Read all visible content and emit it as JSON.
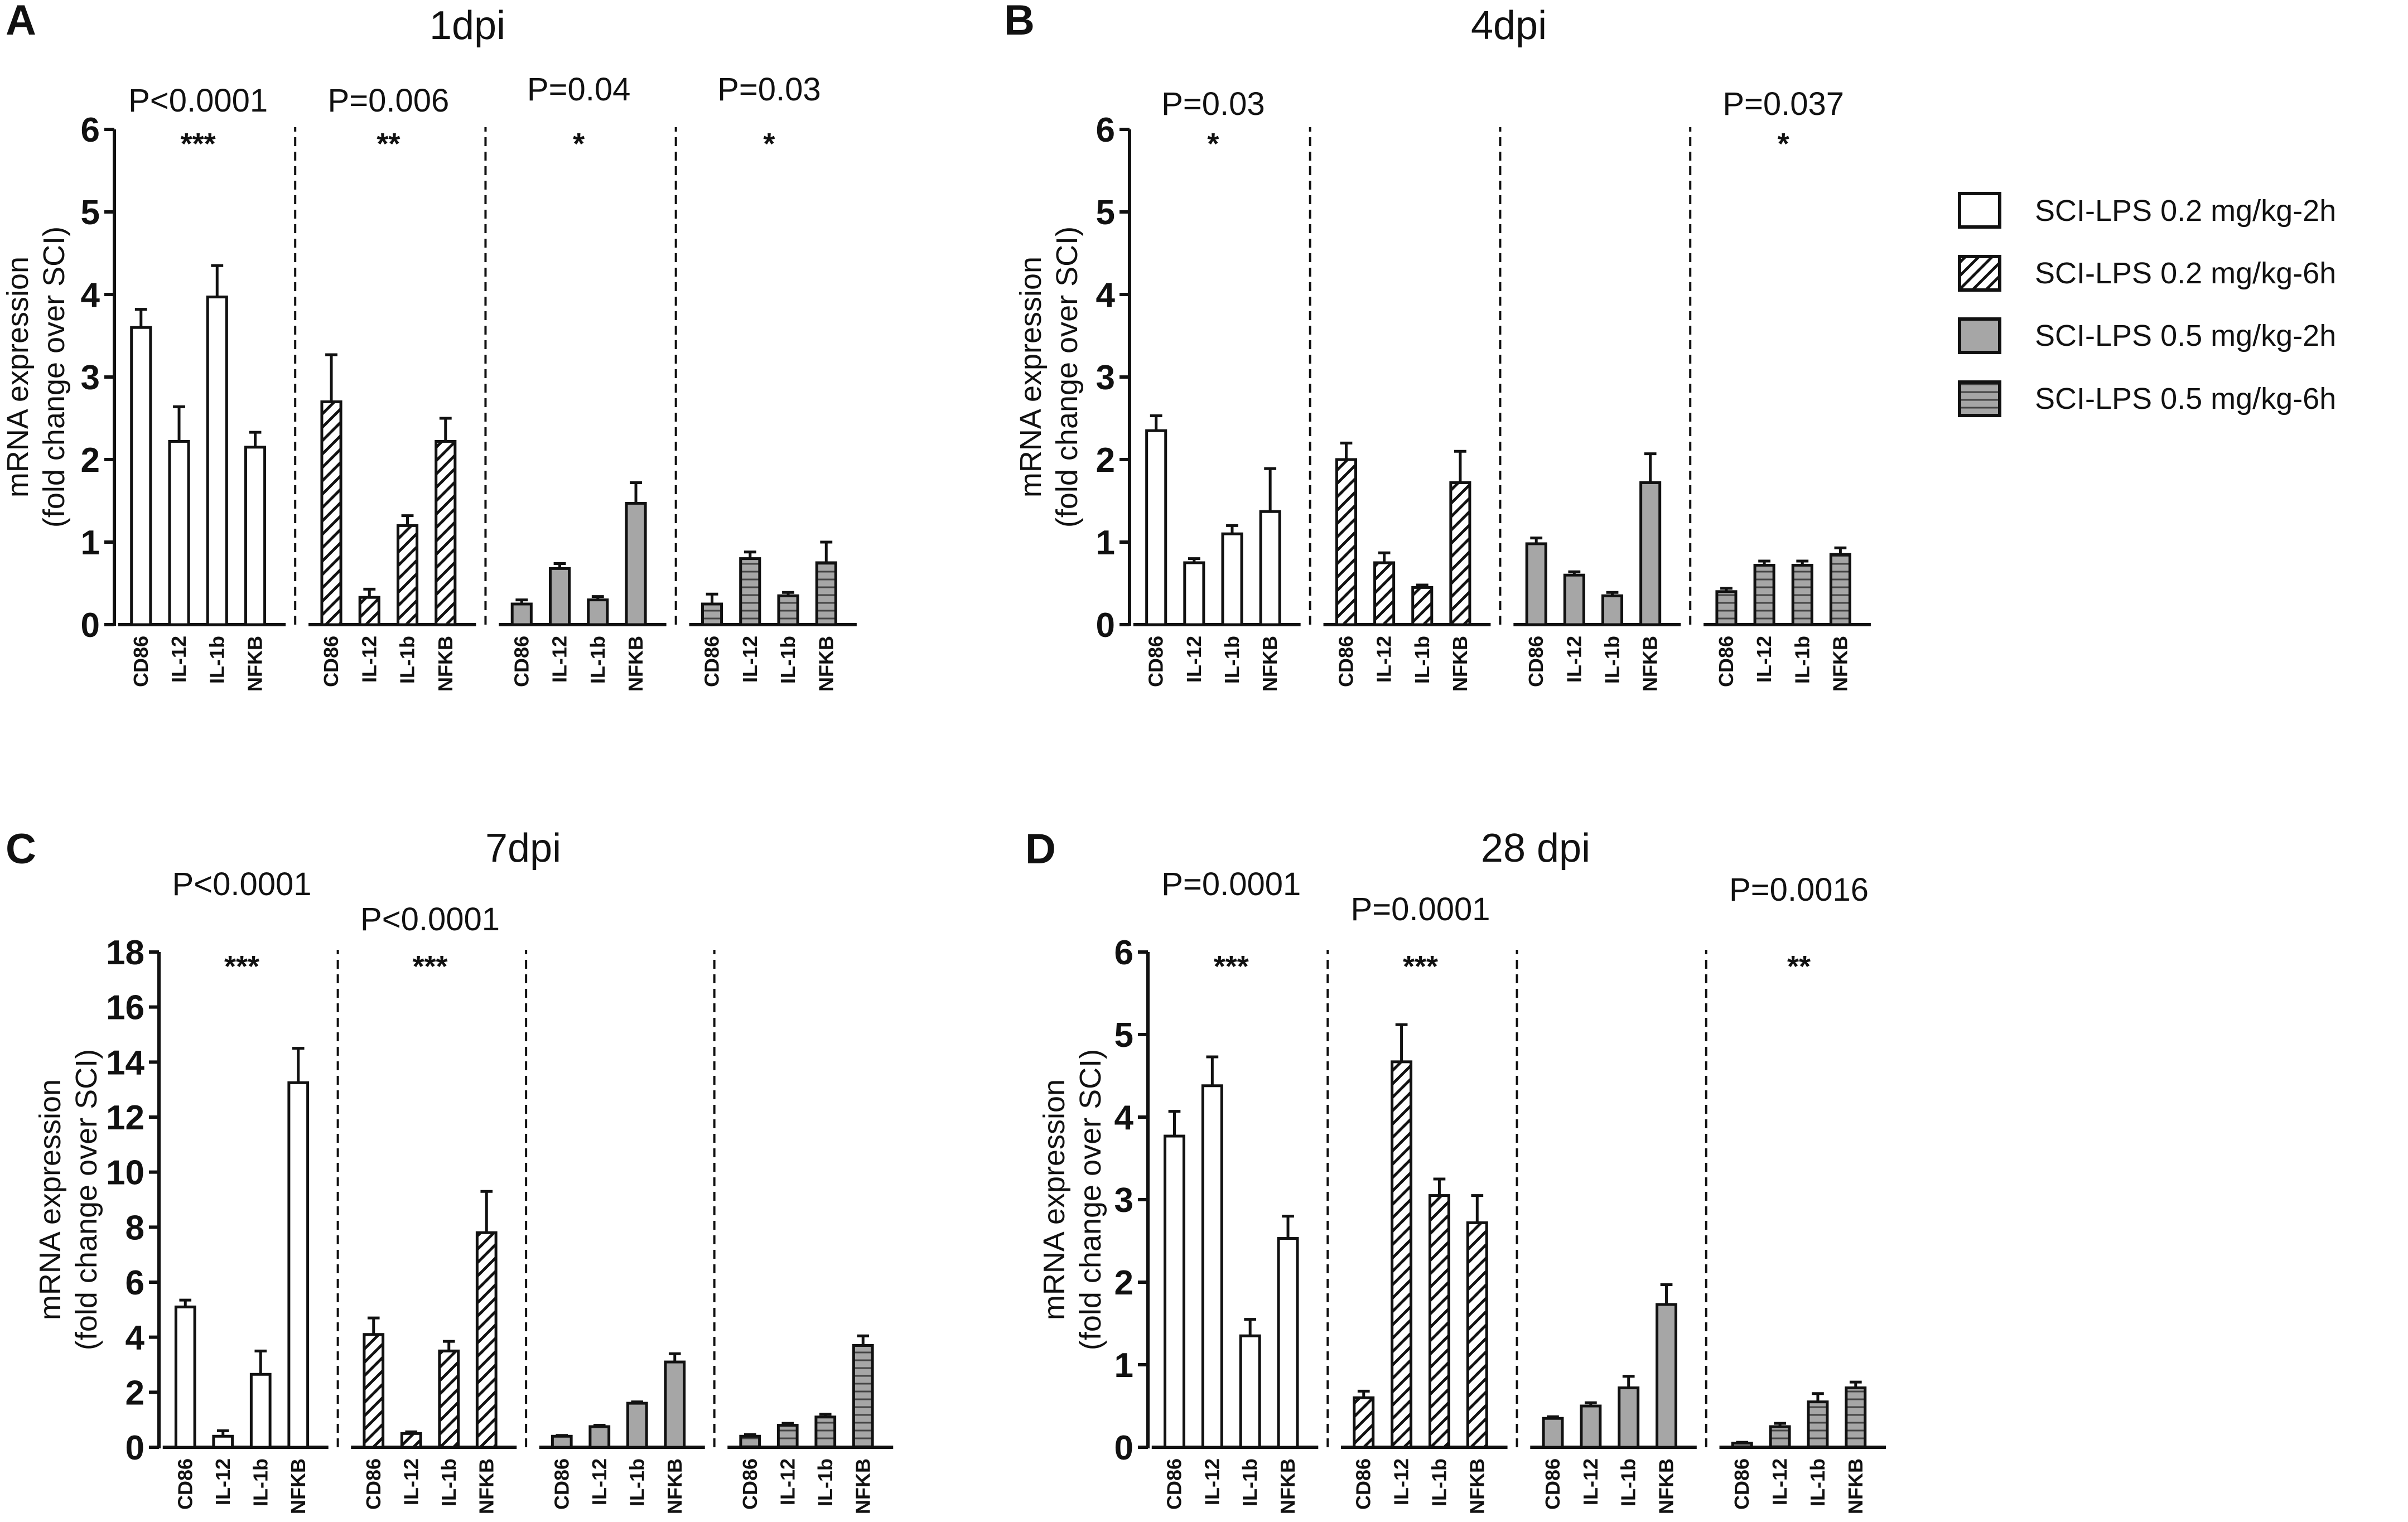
{
  "chart_data": {
    "type": "bar",
    "series_names": [
      "SCI-LPS 0.2 mg/kg-2h",
      "SCI-LPS 0.2 mg/kg-6h",
      "SCI-LPS 0.5 mg/kg-2h",
      "SCI-LPS 0.5 mg/kg-6h"
    ],
    "categories": [
      "CD86",
      "IL-12",
      "IL-1b",
      "NFKB"
    ],
    "ylabel_line1": "mRNA expression",
    "ylabel_line2": "(fold change over SCI)",
    "colors": {
      "white": "#ffffff",
      "gray": "#a6a6a6",
      "stroke": "#111111"
    },
    "panels": [
      {
        "letter": "A",
        "title": "1dpi",
        "ylim": [
          0,
          6
        ],
        "yticks": [
          0,
          1,
          2,
          3,
          4,
          5,
          6
        ],
        "groups": [
          {
            "name": "SCI-LPS 0.2 mg/kg-2h",
            "values": [
              3.6,
              2.22,
              3.97,
              2.15
            ],
            "errors": [
              0.22,
              0.42,
              0.38,
              0.18
            ],
            "pvalue": "P<0.0001",
            "stars": "***"
          },
          {
            "name": "SCI-LPS 0.2 mg/kg-6h",
            "values": [
              2.7,
              0.33,
              1.2,
              2.22
            ],
            "errors": [
              0.57,
              0.1,
              0.12,
              0.28
            ],
            "pvalue": "P=0.006",
            "stars": "**"
          },
          {
            "name": "SCI-LPS 0.5 mg/kg-2h",
            "values": [
              0.25,
              0.68,
              0.3,
              1.47
            ],
            "errors": [
              0.05,
              0.06,
              0.04,
              0.25
            ],
            "pvalue": "P=0.04",
            "stars": "*"
          },
          {
            "name": "SCI-LPS 0.5 mg/kg-6h",
            "values": [
              0.25,
              0.8,
              0.35,
              0.75
            ],
            "errors": [
              0.12,
              0.08,
              0.04,
              0.25
            ],
            "pvalue": "P=0.03",
            "stars": "*"
          }
        ]
      },
      {
        "letter": "B",
        "title": "4dpi",
        "ylim": [
          0,
          6
        ],
        "yticks": [
          0,
          1,
          2,
          3,
          4,
          5,
          6
        ],
        "groups": [
          {
            "name": "SCI-LPS 0.2 mg/kg-2h",
            "values": [
              2.35,
              0.75,
              1.1,
              1.37
            ],
            "errors": [
              0.18,
              0.05,
              0.1,
              0.52
            ],
            "pvalue": "P=0.03",
            "stars": "*"
          },
          {
            "name": "SCI-LPS 0.2 mg/kg-6h",
            "values": [
              2.0,
              0.75,
              0.45,
              1.72
            ],
            "errors": [
              0.2,
              0.12,
              0.03,
              0.38
            ],
            "pvalue": "",
            "stars": ""
          },
          {
            "name": "SCI-LPS 0.5 mg/kg-2h",
            "values": [
              0.98,
              0.6,
              0.35,
              1.72
            ],
            "errors": [
              0.07,
              0.04,
              0.04,
              0.35
            ],
            "pvalue": "",
            "stars": ""
          },
          {
            "name": "SCI-LPS 0.5 mg/kg-6h",
            "values": [
              0.4,
              0.72,
              0.72,
              0.85
            ],
            "errors": [
              0.04,
              0.05,
              0.05,
              0.08
            ],
            "pvalue": "P=0.037",
            "stars": "*"
          }
        ]
      },
      {
        "letter": "C",
        "title": "7dpi",
        "ylim": [
          0,
          18
        ],
        "yticks": [
          0,
          2,
          4,
          6,
          8,
          10,
          12,
          14,
          16,
          18
        ],
        "groups": [
          {
            "name": "SCI-LPS 0.2 mg/kg-2h",
            "values": [
              5.1,
              0.4,
              2.65,
              13.25
            ],
            "errors": [
              0.25,
              0.2,
              0.85,
              1.25
            ],
            "pvalue": "P<0.0001",
            "stars": "***"
          },
          {
            "name": "SCI-LPS 0.2 mg/kg-6h",
            "values": [
              4.1,
              0.5,
              3.5,
              7.8
            ],
            "errors": [
              0.6,
              0.06,
              0.35,
              1.5
            ],
            "pvalue": "P<0.0001",
            "stars": "***"
          },
          {
            "name": "SCI-LPS 0.5 mg/kg-2h",
            "values": [
              0.4,
              0.75,
              1.6,
              3.1
            ],
            "errors": [
              0.03,
              0.05,
              0.05,
              0.3
            ],
            "pvalue": "",
            "stars": ""
          },
          {
            "name": "SCI-LPS 0.5 mg/kg-6h",
            "values": [
              0.4,
              0.8,
              1.1,
              3.7
            ],
            "errors": [
              0.06,
              0.07,
              0.1,
              0.35
            ],
            "pvalue": "",
            "stars": ""
          }
        ]
      },
      {
        "letter": "D",
        "title": "28 dpi",
        "ylim": [
          0,
          6
        ],
        "yticks": [
          0,
          1,
          2,
          3,
          4,
          5,
          6
        ],
        "groups": [
          {
            "name": "SCI-LPS 0.2 mg/kg-2h",
            "values": [
              3.77,
              4.38,
              1.35,
              2.53
            ],
            "errors": [
              0.3,
              0.35,
              0.2,
              0.27
            ],
            "pvalue": "P=0.0001",
            "stars": "***"
          },
          {
            "name": "SCI-LPS 0.2 mg/kg-6h",
            "values": [
              0.6,
              4.67,
              3.05,
              2.72
            ],
            "errors": [
              0.08,
              0.45,
              0.2,
              0.33
            ],
            "pvalue": "P=0.0001",
            "stars": "***"
          },
          {
            "name": "SCI-LPS 0.5 mg/kg-2h",
            "values": [
              0.35,
              0.5,
              0.72,
              1.73
            ],
            "errors": [
              0.02,
              0.04,
              0.14,
              0.24
            ],
            "pvalue": "",
            "stars": ""
          },
          {
            "name": "SCI-LPS 0.5 mg/kg-6h",
            "values": [
              0.05,
              0.25,
              0.55,
              0.72
            ],
            "errors": [
              0.01,
              0.04,
              0.1,
              0.07
            ],
            "pvalue": "P=0.0016",
            "stars": "**"
          }
        ]
      }
    ],
    "legend": {
      "position": "right",
      "entries": [
        {
          "label": "SCI-LPS 0.2 mg/kg-2h",
          "fill": "white"
        },
        {
          "label": "SCI-LPS 0.2 mg/kg-6h",
          "fill": "diagonal-hatch"
        },
        {
          "label": "SCI-LPS 0.5 mg/kg-2h",
          "fill": "gray"
        },
        {
          "label": "SCI-LPS 0.5 mg/kg-6h",
          "fill": "gray-horizontal-stripes"
        }
      ]
    }
  }
}
